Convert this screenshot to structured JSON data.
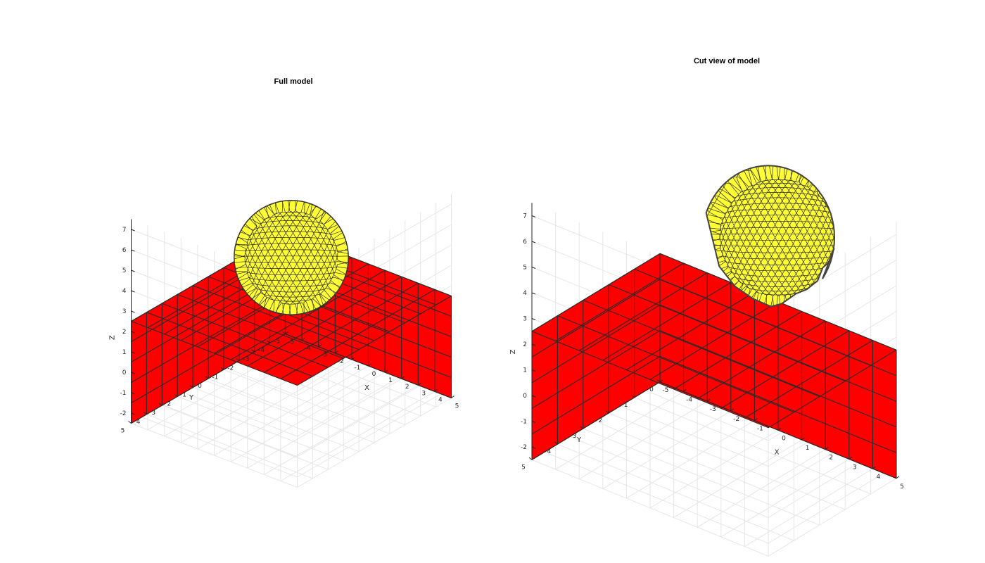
{
  "figure": {
    "panels": [
      {
        "id": "full",
        "title": "Full model",
        "xlabel": "X",
        "ylabel": "Y",
        "zlabel": "Z",
        "x_ticks": [
          "-5",
          "-4",
          "-3",
          "-2",
          "-1",
          "0",
          "1",
          "2",
          "3",
          "4",
          "5"
        ],
        "y_ticks": [
          "-5",
          "-4",
          "-3",
          "-2",
          "-1",
          "0",
          "1",
          "2",
          "3",
          "4",
          "5"
        ],
        "z_ticks": [
          "-2",
          "-1",
          "0",
          "1",
          "2",
          "3",
          "4",
          "5",
          "6",
          "7"
        ],
        "x_range": [
          -5,
          5
        ],
        "y_range": [
          -5,
          5
        ],
        "z_range": [
          -2.5,
          7.5
        ],
        "box": {
          "x": [
            -5,
            5
          ],
          "y": [
            -5,
            5
          ],
          "z": [
            -2.5,
            2.5
          ],
          "divisions": [
            10,
            10,
            5
          ],
          "color": "#ff0000"
        },
        "sphere": {
          "center": [
            0,
            0,
            5
          ],
          "radius": 2.8,
          "color": "#ffff33"
        }
      },
      {
        "id": "cut",
        "title": "Cut view of model",
        "xlabel": "X",
        "ylabel": "Y",
        "zlabel": "Z",
        "x_ticks": [
          "-5",
          "-4",
          "-3",
          "-2",
          "-1",
          "0",
          "1",
          "2",
          "3",
          "4",
          "5"
        ],
        "y_ticks": [
          "0",
          "1",
          "2",
          "3",
          "4",
          "5"
        ],
        "z_ticks": [
          "-2",
          "-1",
          "0",
          "1",
          "2",
          "3",
          "4",
          "5",
          "6",
          "7"
        ],
        "x_range": [
          -5,
          5
        ],
        "y_range": [
          0,
          5
        ],
        "z_range": [
          -2.5,
          7.5
        ],
        "box": {
          "x": [
            -5,
            5
          ],
          "y": [
            0,
            5
          ],
          "z": [
            -2.5,
            2.5
          ],
          "divisions": [
            10,
            5,
            5
          ],
          "color": "#ff0000"
        },
        "sphere": {
          "center": [
            0,
            0,
            5
          ],
          "radius": 2.8,
          "color": "#ffff33"
        }
      }
    ],
    "colors": {
      "box_face": "#ff0000",
      "sphere_face": "#ffff33",
      "mesh_edge": "#2b2b2b",
      "grid": "#e6e6e6",
      "axis": "#262626"
    }
  }
}
